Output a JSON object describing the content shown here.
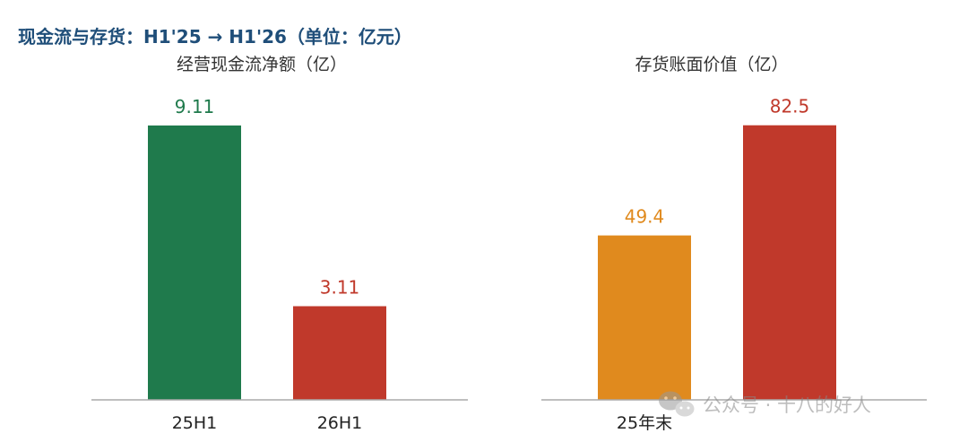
{
  "title": "现金流与存货：H1'25 → H1'26（单位：亿元）",
  "chart_data": [
    {
      "type": "bar",
      "title": "经营现金流净额（亿）",
      "categories": [
        "25H1",
        "26H1"
      ],
      "values": [
        9.11,
        3.11
      ],
      "value_labels": [
        "9.11",
        "3.11"
      ],
      "colors": [
        "#1f7a4c",
        "#c0392b"
      ],
      "ylim": [
        0,
        10.3
      ]
    },
    {
      "type": "bar",
      "title": "存货账面价值（亿）",
      "categories": [
        "25年末",
        ""
      ],
      "values": [
        49.4,
        82.5
      ],
      "value_labels": [
        "49.4",
        "82.5"
      ],
      "colors": [
        "#e08a1e",
        "#c0392b"
      ],
      "ylim": [
        0,
        93.2
      ]
    }
  ],
  "watermark": {
    "text": "公众号 · 十八的好人",
    "icon": "wechat-icon"
  }
}
